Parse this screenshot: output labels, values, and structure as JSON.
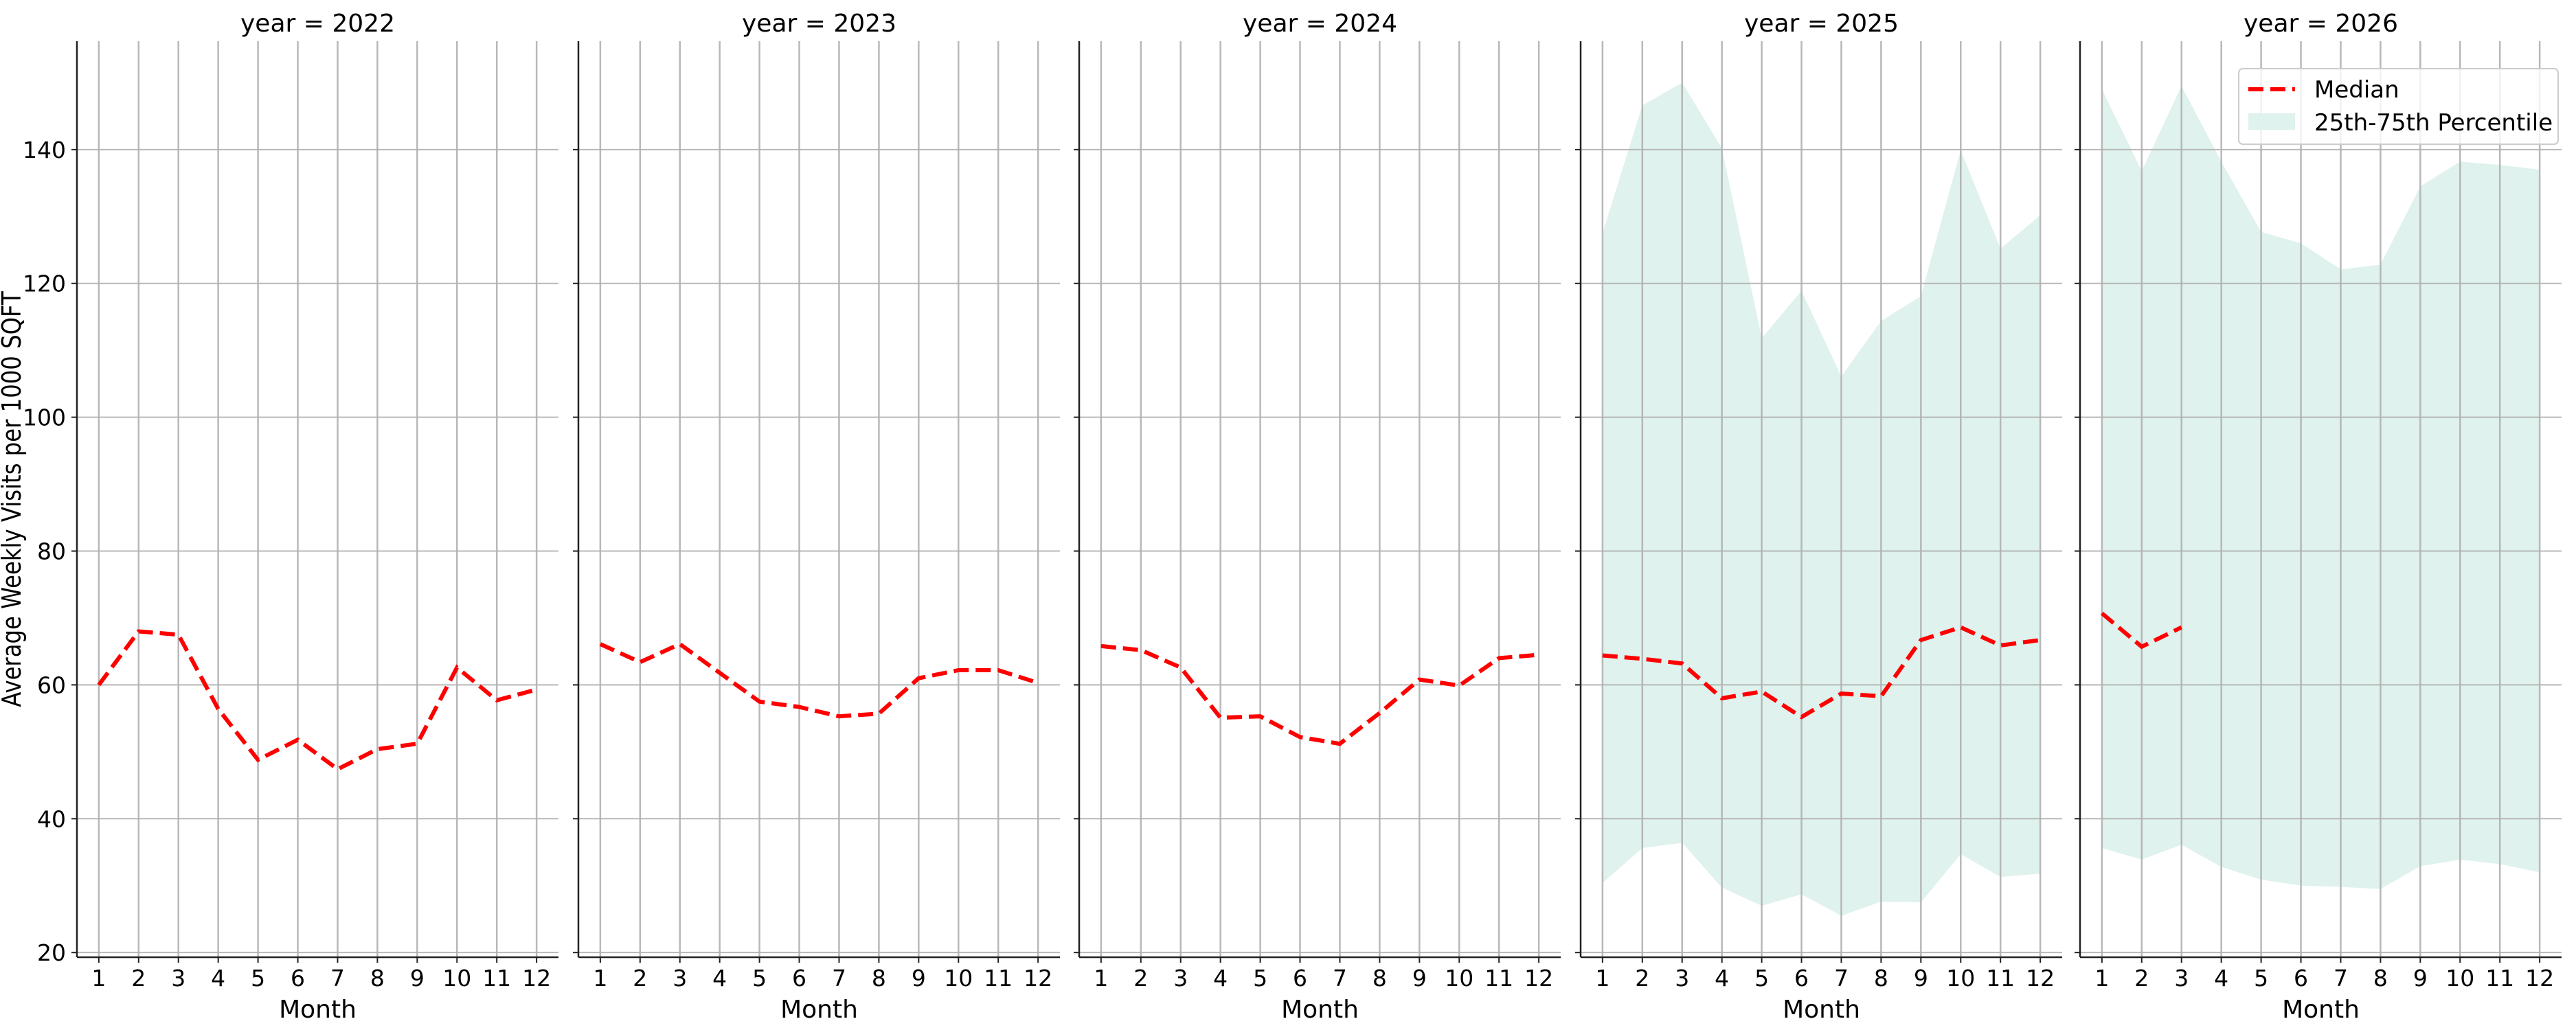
{
  "chart_data": [
    {
      "type": "line",
      "title": "year = 2022",
      "xlabel": "Month",
      "ylabel": "Average Weekly Visits per 1000 SQFT",
      "x": [
        1,
        2,
        3,
        4,
        5,
        6,
        7,
        8,
        9,
        10,
        11,
        12
      ],
      "xlim": [
        0.45,
        12.55
      ],
      "ylim": [
        19.3,
        156.2
      ],
      "yticks": [
        20,
        40,
        60,
        80,
        100,
        120,
        140
      ],
      "grid": true,
      "series": [
        {
          "name": "Median",
          "style": "dashed",
          "color": "#ff0000",
          "values": [
            60.0,
            68.0,
            67.5,
            56.4,
            48.8,
            51.8,
            47.4,
            50.4,
            51.2,
            62.6,
            57.7,
            59.3
          ]
        }
      ]
    },
    {
      "type": "line",
      "title": "year = 2023",
      "xlabel": "Month",
      "x": [
        1,
        2,
        3,
        4,
        5,
        6,
        7,
        8,
        9,
        10,
        11,
        12
      ],
      "xlim": [
        0.45,
        12.55
      ],
      "ylim": [
        19.3,
        156.2
      ],
      "yticks": [
        20,
        40,
        60,
        80,
        100,
        120,
        140
      ],
      "grid": true,
      "series": [
        {
          "name": "Median",
          "style": "dashed",
          "color": "#ff0000",
          "values": [
            66.1,
            63.4,
            66.1,
            61.8,
            57.5,
            56.7,
            55.3,
            55.7,
            61.0,
            62.2,
            62.2,
            60.3
          ]
        }
      ]
    },
    {
      "type": "line",
      "title": "year = 2024",
      "xlabel": "Month",
      "x": [
        1,
        2,
        3,
        4,
        5,
        6,
        7,
        8,
        9,
        10,
        11,
        12
      ],
      "xlim": [
        0.45,
        12.55
      ],
      "ylim": [
        19.3,
        156.2
      ],
      "yticks": [
        20,
        40,
        60,
        80,
        100,
        120,
        140
      ],
      "grid": true,
      "series": [
        {
          "name": "Median",
          "style": "dashed",
          "color": "#ff0000",
          "values": [
            65.8,
            65.2,
            62.6,
            55.1,
            55.3,
            52.2,
            51.2,
            55.8,
            60.8,
            59.9,
            64.0,
            64.5
          ]
        }
      ]
    },
    {
      "type": "area",
      "title": "year = 2025",
      "xlabel": "Month",
      "x": [
        1,
        2,
        3,
        4,
        5,
        6,
        7,
        8,
        9,
        10,
        11,
        12
      ],
      "xlim": [
        0.45,
        12.55
      ],
      "ylim": [
        19.3,
        156.2
      ],
      "yticks": [
        20,
        40,
        60,
        80,
        100,
        120,
        140
      ],
      "grid": true,
      "series": [
        {
          "name": "Median",
          "style": "dashed",
          "color": "#ff0000",
          "values": [
            64.4,
            63.9,
            63.2,
            58.0,
            59.0,
            55.2,
            58.7,
            58.3,
            66.7,
            68.6,
            65.9,
            66.7
          ]
        },
        {
          "name": "25th-75th Percentile",
          "style": "band",
          "color": "#dff2ed",
          "lower": [
            30.4,
            35.6,
            36.4,
            29.7,
            27.0,
            28.7,
            25.5,
            27.6,
            27.5,
            34.7,
            31.3,
            31.8
          ],
          "upper": [
            127.5,
            146.6,
            150.0,
            140.2,
            111.8,
            118.9,
            106.1,
            114.4,
            118.1,
            139.9,
            125.2,
            130.2
          ]
        }
      ]
    },
    {
      "type": "area",
      "title": "year = 2026",
      "xlabel": "Month",
      "x": [
        1,
        2,
        3,
        4,
        5,
        6,
        7,
        8,
        9,
        10,
        11,
        12
      ],
      "xlim": [
        0.45,
        12.55
      ],
      "ylim": [
        19.3,
        156.2
      ],
      "yticks": [
        20,
        40,
        60,
        80,
        100,
        120,
        140
      ],
      "grid": true,
      "legend": {
        "placement": "top-right",
        "entries": [
          "Median",
          "25th-75th Percentile"
        ]
      },
      "series": [
        {
          "name": "Median",
          "style": "dashed",
          "color": "#ff0000",
          "x": [
            1,
            2,
            3
          ],
          "values": [
            70.7,
            65.7,
            68.6
          ]
        },
        {
          "name": "25th-75th Percentile",
          "style": "band",
          "color": "#dff2ed",
          "lower": [
            35.6,
            33.9,
            36.1,
            32.8,
            30.9,
            30.0,
            29.8,
            29.5,
            32.9,
            33.9,
            33.2,
            32.0
          ],
          "upper": [
            149.0,
            136.8,
            149.5,
            138.2,
            127.7,
            126.0,
            122.1,
            122.8,
            134.5,
            138.2,
            137.7,
            137.0
          ]
        }
      ]
    }
  ]
}
